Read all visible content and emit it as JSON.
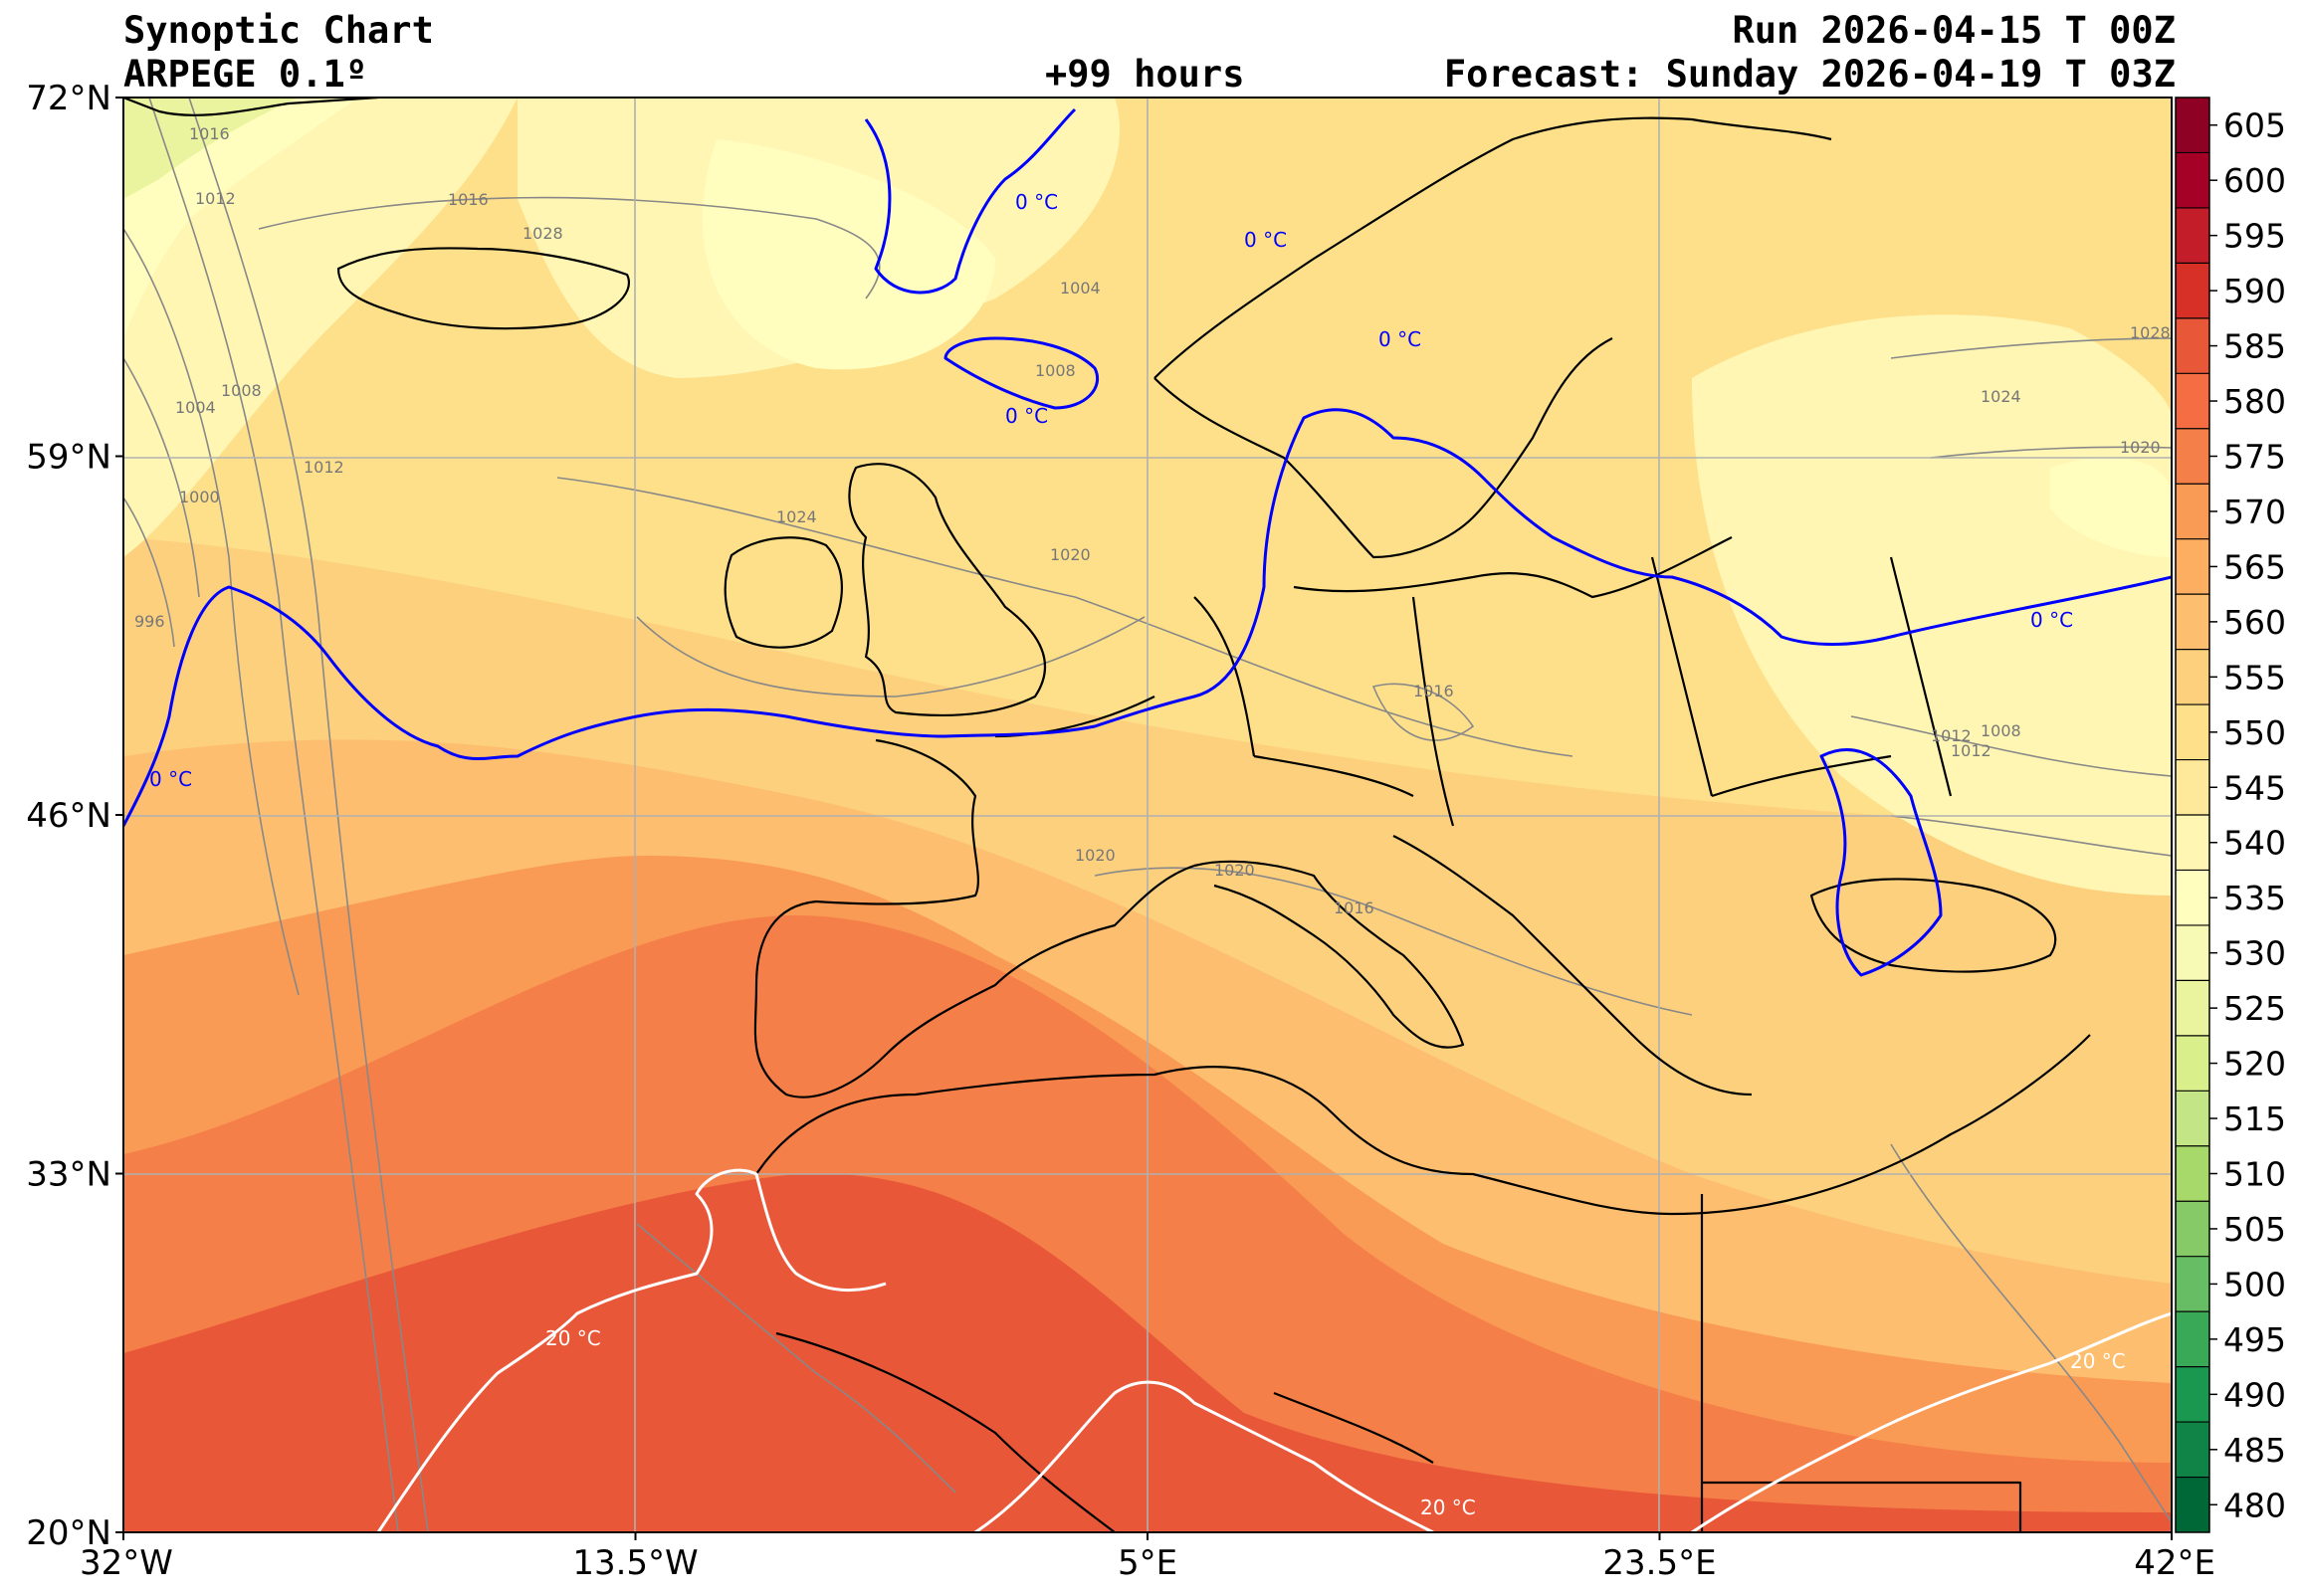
{
  "header": {
    "title": "Synoptic Chart",
    "model": "ARPEGE 0.1º",
    "lead": "+99 hours",
    "run": "Run 2026-04-15 T 00Z",
    "forecast": "Forecast: Sunday 2026-04-19 T 03Z"
  },
  "axes": {
    "lat_labels": [
      "72°N",
      "59°N",
      "46°N",
      "33°N",
      "20°N"
    ],
    "lon_labels": [
      "32°W",
      "13.5°W",
      "5°E",
      "23.5°E",
      "42°E"
    ],
    "lat_range": [
      20,
      72
    ],
    "lon_range": [
      -32,
      42
    ]
  },
  "colorbar": {
    "levels": [
      480,
      485,
      490,
      495,
      500,
      505,
      510,
      515,
      520,
      525,
      530,
      535,
      540,
      545,
      550,
      555,
      560,
      565,
      570,
      575,
      580,
      585,
      590,
      595,
      600,
      605
    ],
    "colors": [
      "#006837",
      "#0f8446",
      "#1a9850",
      "#3aa957",
      "#66bd63",
      "#85ca66",
      "#a6d96a",
      "#c3e585",
      "#d9ef8b",
      "#eaf49e",
      "#f6fab5",
      "#fffebe",
      "#fff6b4",
      "#fee89a",
      "#fee08b",
      "#fdd07e",
      "#fdbf6f",
      "#fdae61",
      "#f99a55",
      "#f57f48",
      "#f46d43",
      "#e95739",
      "#d73027",
      "#c41d2a",
      "#a50026",
      "#8f0025"
    ]
  },
  "isobar_labels": [
    "1016",
    "1012",
    "1008",
    "1004",
    "1000",
    "996",
    "1028",
    "1024",
    "1020",
    "1016",
    "1008",
    "1004",
    "1012",
    "1016",
    "1020",
    "1016",
    "1012",
    "1020",
    "1008",
    "1012",
    "1020",
    "1024",
    "1028"
  ],
  "isotherm_labels": {
    "cold": [
      "0 °C",
      "0 °C",
      "0 °C",
      "0 °C",
      "0 °C",
      "0 °C"
    ],
    "warm": [
      "20 °C",
      "20 °C",
      "20 °C"
    ]
  },
  "colors": {
    "isotherm_0c": "#0000ff",
    "isotherm_20c": "#ffffff",
    "coastline": "#000000",
    "isobar": "#888888",
    "graticule": "#b0b0b0"
  }
}
